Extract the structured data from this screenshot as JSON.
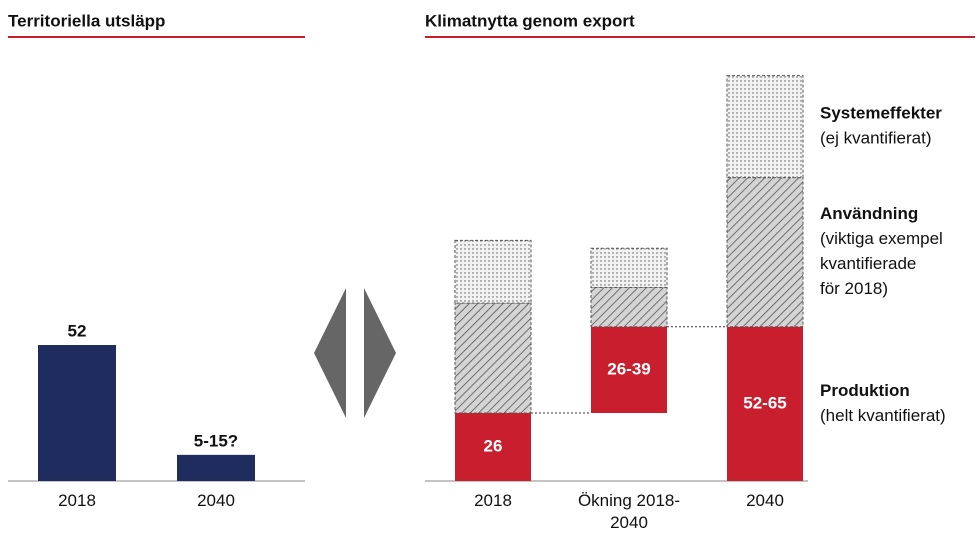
{
  "chart_data": [
    {
      "type": "bar",
      "title": "Territoriella utsläpp",
      "categories": [
        "2018",
        "2040"
      ],
      "values": [
        52,
        10
      ],
      "value_labels": [
        "52",
        "5-15?"
      ],
      "color": "#1f2d5e"
    },
    {
      "type": "waterfall",
      "title": "Klimatnytta genom export",
      "categories": [
        "2018",
        "Ökning 2018-2040",
        "2040"
      ],
      "measure": [
        "absolute",
        "relative",
        "absolute"
      ],
      "series": [
        {
          "name": "Produktion",
          "description": [
            "(helt kvantifierat)"
          ],
          "color": "#c81e2d",
          "pattern": "solid",
          "values": [
            26,
            33,
            59
          ],
          "value_labels": [
            "26",
            "26-39",
            "52-65"
          ]
        },
        {
          "name": "Användning",
          "description": [
            "(viktiga exempel",
            "kvantifierade",
            "för 2018)"
          ],
          "color": "#555555",
          "pattern": "hatch",
          "values": [
            42,
            15,
            57
          ]
        },
        {
          "name": "Systemeffekter",
          "description": [
            "(ej kvantifierat)"
          ],
          "color": "#555555",
          "pattern": "dots",
          "values": [
            24,
            15,
            39
          ]
        }
      ]
    }
  ]
}
